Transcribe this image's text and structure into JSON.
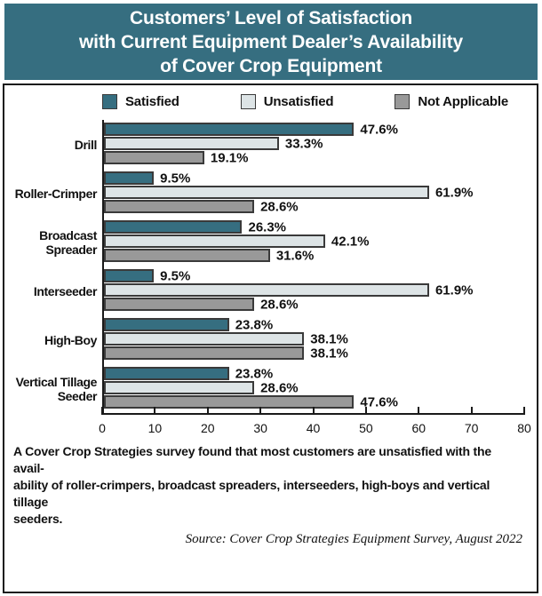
{
  "title": {
    "lines": [
      "Customers’ Level of Satisfaction",
      "with Current Equipment Dealer’s Availability",
      "of Cover Crop Equipment"
    ]
  },
  "colors": {
    "banner_bg": "#366e80",
    "banner_text": "#ffffff",
    "satisfied": "#366e80",
    "unsatisfied": "#dde4e6",
    "not_applicable": "#999999",
    "bar_border": "#3a3a3a",
    "axis": "#1a1a1a"
  },
  "chart_data": {
    "type": "bar",
    "orientation": "horizontal",
    "title": "Customers’ Level of Satisfaction with Current Equipment Dealer’s Availability of Cover Crop Equipment",
    "categories": [
      "Drill",
      "Roller-Crimper",
      "Broadcast Spreader",
      "Interseeder",
      "High-Boy",
      "Vertical Tillage Seeder"
    ],
    "category_labels_display": [
      "Drill",
      "Roller-Crimper",
      "Broadcast\nSpreader",
      "Interseeder",
      "High-Boy",
      "Vertical Tillage\nSeeder"
    ],
    "series": [
      {
        "name": "Satisfied",
        "color": "#366e80",
        "values": [
          47.6,
          9.5,
          26.3,
          9.5,
          23.8,
          23.8
        ]
      },
      {
        "name": "Unsatisfied",
        "color": "#dde4e6",
        "values": [
          33.3,
          61.9,
          42.1,
          61.9,
          38.1,
          28.6
        ]
      },
      {
        "name": "Not Applicable",
        "color": "#999999",
        "values": [
          19.1,
          28.6,
          31.6,
          28.6,
          38.1,
          47.6
        ]
      }
    ],
    "value_suffix": "%",
    "xlim": [
      0,
      80
    ],
    "xticks": [
      0,
      10,
      20,
      30,
      40,
      50,
      60,
      70,
      80
    ],
    "xlabel": "",
    "ylabel": "",
    "grid": false,
    "legend_position": "top"
  },
  "footnote": "A Cover Crop Strategies survey found that most customers are unsatisfied with the avail-\nability of roller-crimpers, broadcast spreaders, interseeders, high-boys and vertical tillage\nseeders.",
  "source": "Source:  Cover Crop Strategies Equipment Survey, August 2022"
}
